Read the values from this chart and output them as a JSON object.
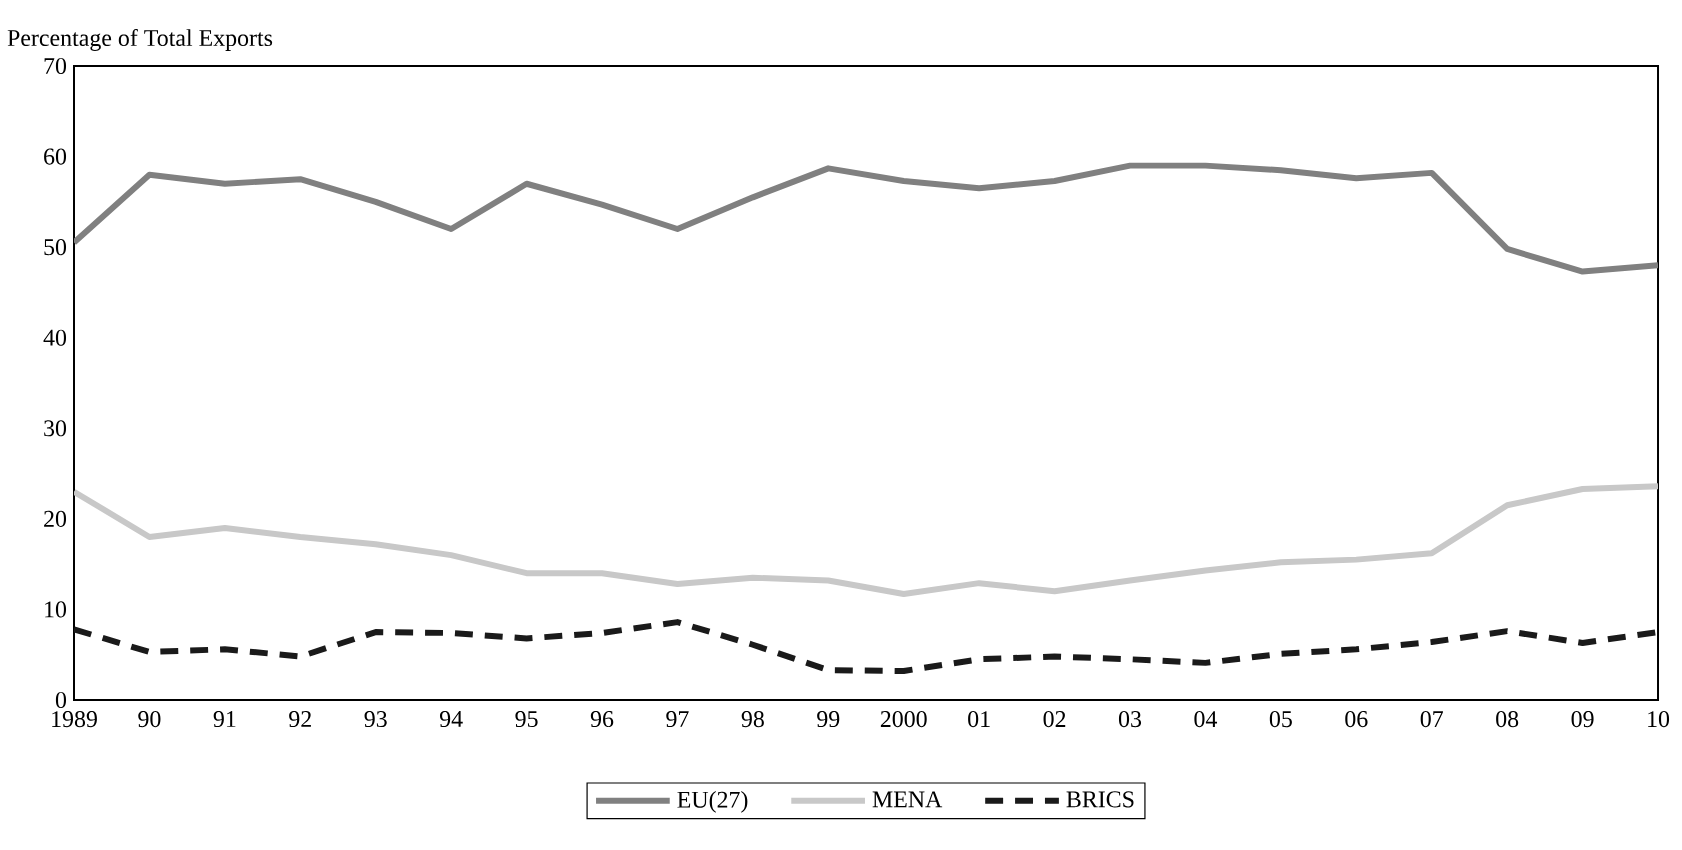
{
  "chart_data": {
    "type": "line",
    "ylabel": "Percentage of Total Exports",
    "categories": [
      "1989",
      "90",
      "91",
      "92",
      "93",
      "94",
      "95",
      "96",
      "97",
      "98",
      "99",
      "2000",
      "01",
      "02",
      "03",
      "04",
      "05",
      "06",
      "07",
      "08",
      "09",
      "10"
    ],
    "series": [
      {
        "name": "EU(27)",
        "color": "#808080",
        "line_style": "solid",
        "values": [
          50.5,
          58,
          57,
          57.5,
          55,
          52,
          57,
          54.7,
          52,
          55.5,
          58.7,
          57.3,
          56.5,
          57.3,
          59,
          59,
          58.5,
          57.6,
          58.2,
          49.8,
          47.3,
          48
        ]
      },
      {
        "name": "MENA",
        "color": "#c8c8c8",
        "line_style": "solid",
        "values": [
          23,
          18,
          19,
          18,
          17.2,
          16,
          14,
          14,
          12.8,
          13.5,
          13.2,
          11.7,
          12.9,
          12,
          13.2,
          14.3,
          15.2,
          15.5,
          16.2,
          21.5,
          23.3,
          23.6
        ]
      },
      {
        "name": "BRICS",
        "color": "#1a1a1a",
        "line_style": "dashed",
        "values": [
          7.8,
          5.3,
          5.6,
          4.8,
          7.5,
          7.4,
          6.8,
          7.4,
          8.6,
          6.1,
          3.3,
          3.2,
          4.5,
          4.8,
          4.5,
          4.1,
          5.1,
          5.6,
          6.4,
          7.6,
          6.3,
          7.5
        ]
      }
    ],
    "ylim": [
      0,
      70
    ],
    "yticks": [
      0,
      10,
      20,
      30,
      40,
      50,
      60,
      70
    ],
    "grid": false,
    "legend": "bottom",
    "marker": "none"
  }
}
